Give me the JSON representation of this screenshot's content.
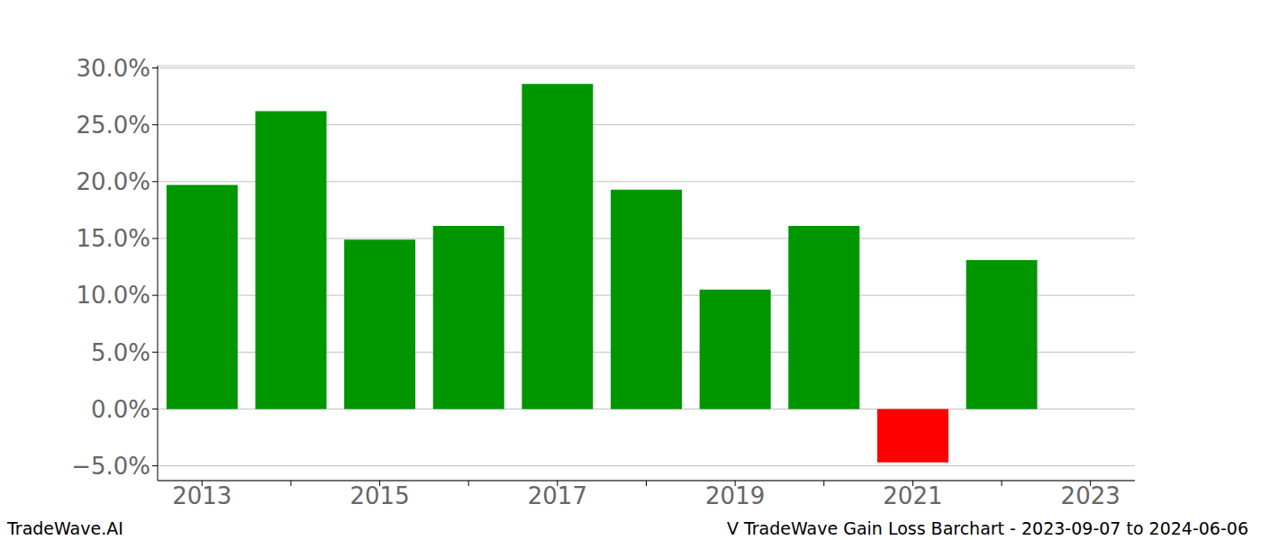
{
  "chart_data": {
    "type": "bar",
    "categories": [
      "2013",
      null,
      "2015",
      null,
      "2017",
      null,
      "2019",
      null,
      "2021",
      null,
      "2023"
    ],
    "values": [
      19.7,
      26.2,
      14.9,
      16.1,
      28.6,
      19.3,
      10.5,
      16.1,
      -4.7,
      13.1,
      null
    ],
    "colors": [
      "#009600",
      "#009600",
      "#009600",
      "#009600",
      "#009600",
      "#009600",
      "#009600",
      "#009600",
      "#ff0000",
      "#009600",
      "#009600"
    ],
    "ylim": [
      -6.3,
      30.2
    ],
    "yticks": [
      {
        "value": -5,
        "label": "−5.0%"
      },
      {
        "value": 0,
        "label": "0.0%"
      },
      {
        "value": 5,
        "label": "5.0%"
      },
      {
        "value": 10,
        "label": "10.0%"
      },
      {
        "value": 15,
        "label": "15.0%"
      },
      {
        "value": 20,
        "label": "20.0%"
      },
      {
        "value": 25,
        "label": "25.0%"
      },
      {
        "value": 30,
        "label": "30.0%"
      }
    ],
    "grid": true,
    "annotations": [
      "TradeWave.AI",
      "V TradeWave Gain Loss Barchart - 2023-09-07 to 2024-06-06"
    ]
  }
}
